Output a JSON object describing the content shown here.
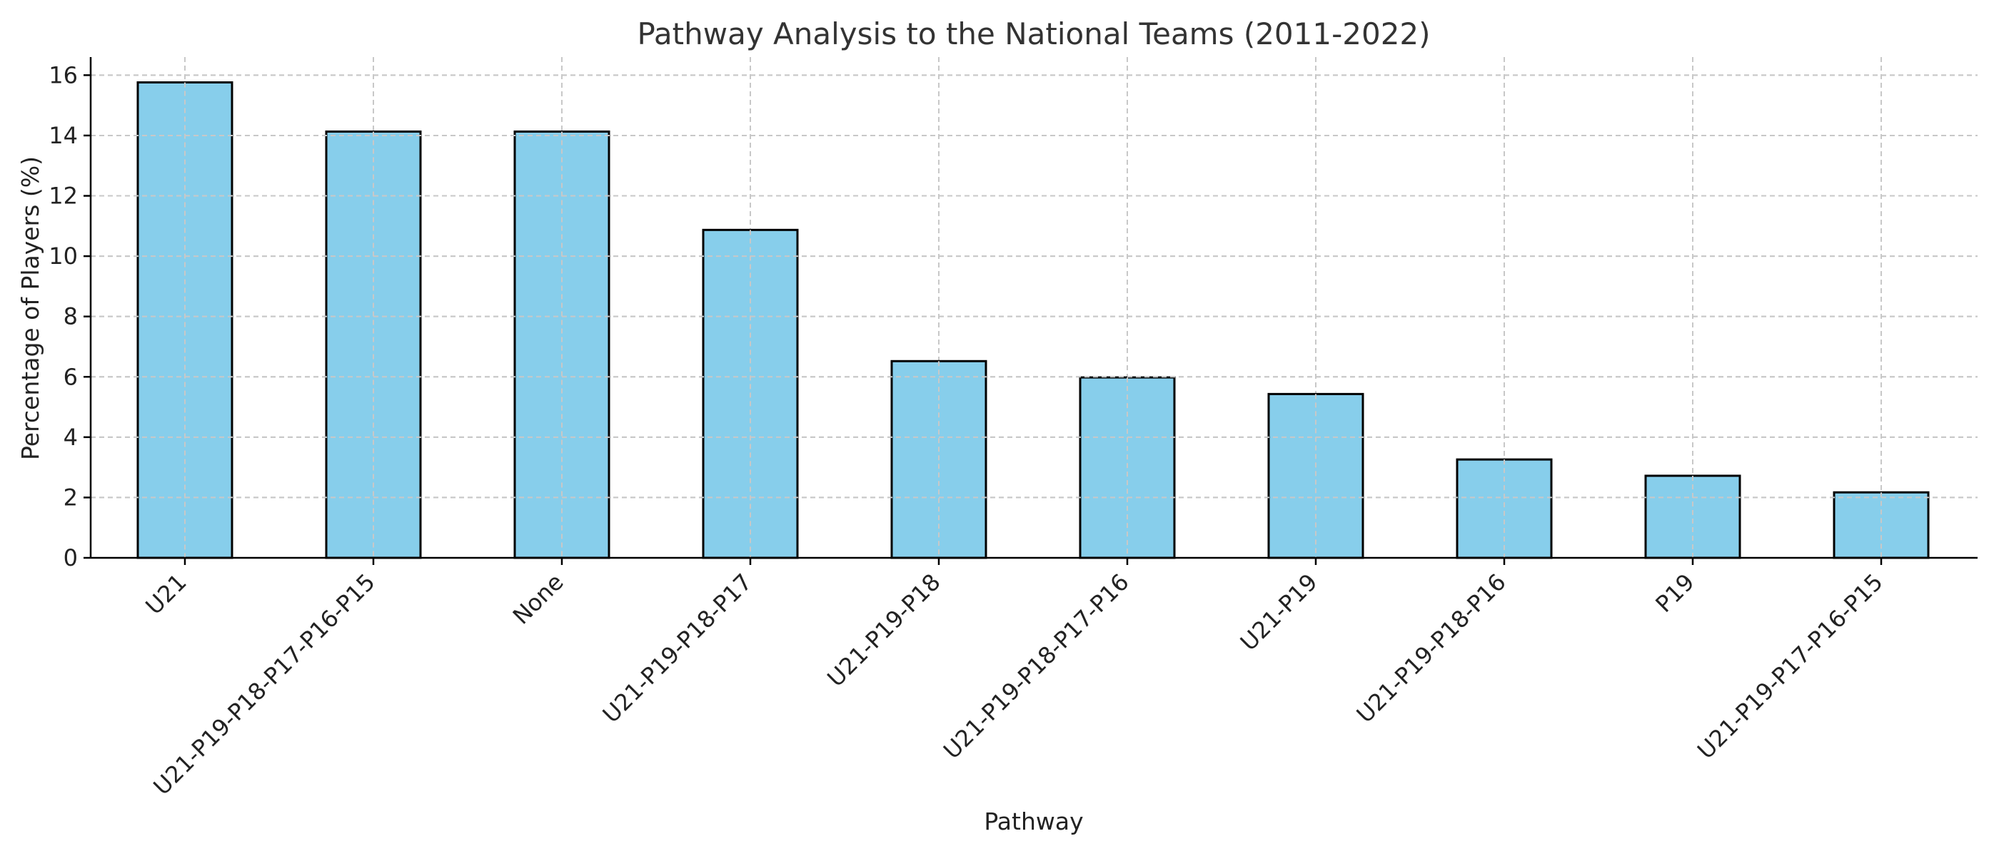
{
  "chart_data": {
    "type": "bar",
    "title": "Pathway Analysis to the National Teams (2011-2022)",
    "xlabel": "Pathway",
    "ylabel": "Percentage of Players (%)",
    "categories": [
      "U21",
      "U21-P19-P18-P17-P16-P15",
      "None",
      "U21-P19-P18-P17",
      "U21-P19-P18",
      "U21-P19-P18-P17-P16",
      "U21-P19",
      "U21-P19-P18-P16",
      "P19",
      "U21-P19-P17-P16-P15"
    ],
    "values": [
      15.76,
      14.13,
      14.13,
      10.87,
      6.52,
      5.98,
      5.43,
      3.26,
      2.72,
      2.17
    ],
    "ylim": [
      0,
      16.6
    ],
    "yticks": [
      0,
      2,
      4,
      6,
      8,
      10,
      12,
      14,
      16
    ],
    "grid": true,
    "bar_color": "#87CEEB",
    "edge_color": "#000000"
  }
}
